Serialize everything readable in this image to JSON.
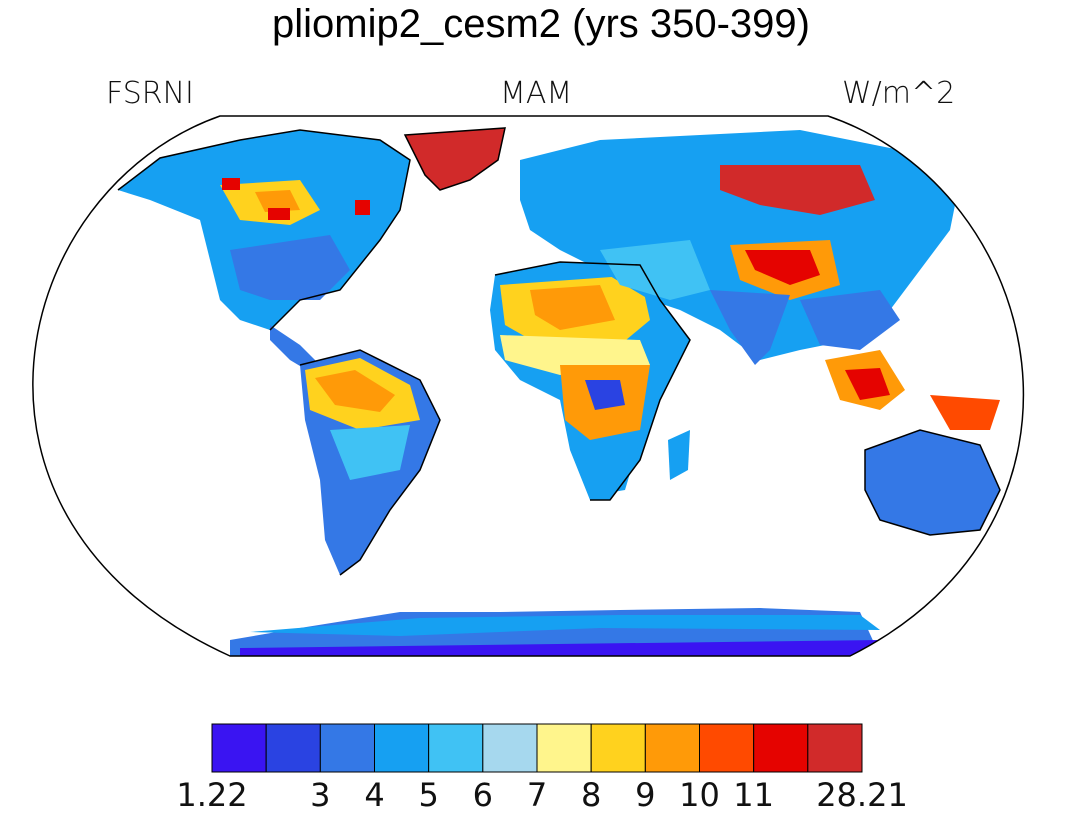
{
  "title": "pliomip2_cesm2 (yrs 350-399)",
  "labels": {
    "left": "FSRNI",
    "center": "MAM",
    "right": "W/m^2"
  },
  "colorbar": {
    "colors": [
      "#3a14f2",
      "#2a43e2",
      "#3478e6",
      "#16a0f2",
      "#40c2f4",
      "#a6d8ee",
      "#fff58c",
      "#ffd21e",
      "#ff9a08",
      "#ff4a00",
      "#e50300",
      "#d12a2a"
    ],
    "ticks": [
      "1.22",
      "3",
      "4",
      "5",
      "6",
      "7",
      "8",
      "9",
      "10",
      "11",
      "28.21"
    ]
  },
  "colors": {
    "ocean": "#ffffff",
    "outline": "#000000",
    "palette_names": [
      "deep-blue",
      "blue",
      "mid-blue",
      "light-blue",
      "sky",
      "pale",
      "yellow",
      "gold",
      "orange",
      "red-orange",
      "red",
      "dark-red"
    ]
  }
}
